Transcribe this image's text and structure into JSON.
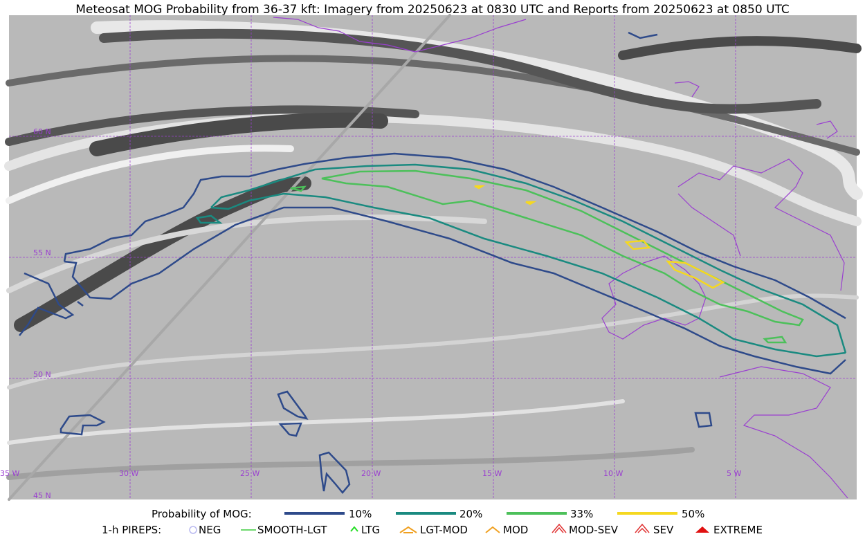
{
  "title": "Meteosat MOG Probability from 36-37 kft: Imagery from 20250623 at 0830 UTC and Reports from 20250623 at 0850 UTC",
  "map": {
    "latitude_labels": [
      "60 N",
      "55 N",
      "50 N",
      "45 N"
    ],
    "longitude_labels": [
      "35 W",
      "30 W",
      "25 W",
      "20 W",
      "15 W",
      "10 W",
      "5 W"
    ]
  },
  "legend": {
    "probability": {
      "label": "Probability of MOG:",
      "items": [
        "10%",
        "20%",
        "33%",
        "50%"
      ]
    },
    "pireps": {
      "label": "1-h PIREPS:",
      "items": [
        "NEG",
        "SMOOTH-LGT",
        "LTG",
        "LGT-MOD",
        "MOD",
        "MOD-SEV",
        "SEV",
        "EXTREME"
      ]
    }
  }
}
